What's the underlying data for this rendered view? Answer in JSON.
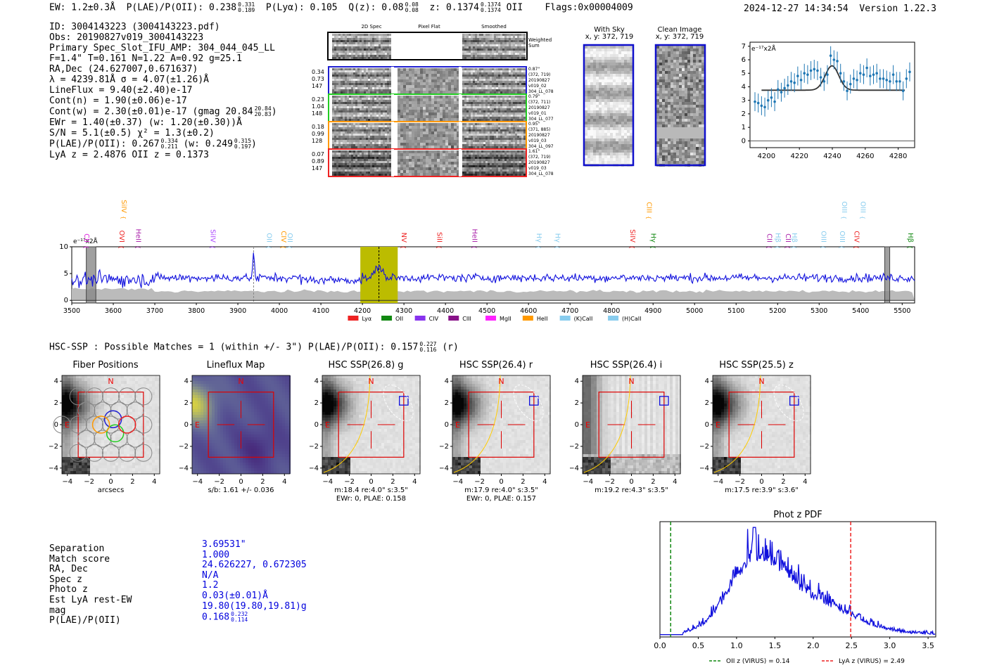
{
  "header": {
    "ew": "EW: 1.2±0.3Å",
    "plae_label": "P(LAE)/P(OII): 0.238",
    "plae_hi": "0.331",
    "plae_lo": "0.189",
    "plya": "P(Lyα): 0.105",
    "qz": "Q(z): 0.08",
    "qz_hi": "0.08",
    "qz_lo": "0.08",
    "z": "z: 0.1374",
    "z_hi": "0.1374",
    "z_lo": "0.1374",
    "z_line": "OII",
    "flags": "Flags:0x00004009",
    "timestamp": "2024-12-27 14:34:54",
    "version": "Version 1.22.3"
  },
  "info": {
    "id": "ID: 3004143223 (3004143223.pdf)",
    "obs": "Obs: 20190827v019_3004143223",
    "primary": "Primary Spec_Slot_IFU_AMP: 304_044_045_LL",
    "params": "F=1.4\"  T=0.161  N=1.22  A=0.92  g=25.1",
    "radec": "RA,Dec (24.627007,0.671637)",
    "lambda": "λ = 4239.81Å  σ = 4.07(±1.26)Å",
    "lineflux": "LineFlux = 9.40(±2.40)e-17",
    "cont_n": "Cont(n) = 1.90(±0.06)e-17",
    "cont_w": "Cont(w) = 2.30(±0.01)e-17 (gmag 20.84",
    "cont_w_hi": "20.84",
    "cont_w_lo": "20.83",
    "ewr": "EWr = 1.40(±0.37) (w: 1.20(±0.30))Å",
    "sn": "S/N = 5.1(±0.5)  χ² = 1.3(±0.2)",
    "plae": "P(LAE)/P(OII): 0.267",
    "plae_hi": "0.334",
    "plae_lo": "0.211",
    "plae_w": "(w: 0.249",
    "plae_w_hi": "0.315",
    "plae_w_lo": "0.197",
    "lya_z": "LyA z = 2.4876   OII z = 0.1373"
  },
  "cutouts": {
    "col_2d": "2D Spec",
    "col_flat": "Pixel Flat",
    "col_smooth": "Smoothed",
    "weighted": "Weighted",
    "sum": "Sum",
    "rows": [
      {
        "w1": "0.34",
        "w2": "0.73",
        "w3": "147",
        "r1": "0.87\"",
        "r2": "(372, 719)",
        "r3": "20190827",
        "r4": "v019_02",
        "r5": "304_LL_078"
      },
      {
        "w1": "0.23",
        "w2": "1.04",
        "w3": "148",
        "r1": "0.79\"",
        "r2": "(372, 711)",
        "r3": "20190827",
        "r4": "v019_01",
        "r5": "304_LL_077"
      },
      {
        "w1": "0.18",
        "w2": "0.99",
        "w3": "128",
        "r1": "0.95\"",
        "r2": "(371, 885)",
        "r3": "20190827",
        "r4": "v019_03",
        "r5": "304_LL_097"
      },
      {
        "w1": "0.07",
        "w2": "0.89",
        "w3": "147",
        "r1": "1.61\"",
        "r2": "(372, 719)",
        "r3": "20190827",
        "r4": "v019_03",
        "r5": "304_LL_078"
      }
    ],
    "row_colors": [
      "#1f1fd1",
      "#22cc22",
      "#ff9900",
      "#ee2222"
    ],
    "with_sky": "With Sky",
    "with_sky_xy": "x, y: 372, 719",
    "clean": "Clean Image",
    "clean_xy": "x, y: 372, 719"
  },
  "chart_data": [
    {
      "name": "line-fit",
      "type": "scatter",
      "ylabel": "e⁻¹⁷x2Å",
      "xlim": [
        4190,
        4290
      ],
      "ylim": [
        -0.5,
        7.3
      ],
      "xticks": [
        4200,
        4220,
        4240,
        4260,
        4280
      ],
      "yticks": [
        0,
        1,
        2,
        3,
        4,
        5,
        6,
        7
      ],
      "x": [
        4193,
        4195,
        4197,
        4199,
        4201,
        4203,
        4205,
        4207,
        4209,
        4211,
        4213,
        4215,
        4217,
        4219,
        4221,
        4223,
        4225,
        4227,
        4229,
        4231,
        4233,
        4235,
        4237,
        4239,
        4241,
        4243,
        4245,
        4247,
        4249,
        4251,
        4253,
        4255,
        4257,
        4259,
        4261,
        4263,
        4265,
        4267,
        4269,
        4271,
        4273,
        4275,
        4277,
        4279,
        4281,
        4283,
        4285,
        4287
      ],
      "y": [
        2.9,
        2.8,
        2.6,
        2.5,
        3.0,
        3.2,
        2.9,
        3.8,
        3.6,
        3.9,
        4.1,
        4.4,
        4.3,
        4.8,
        4.5,
        5.0,
        4.9,
        5.2,
        5.3,
        5.2,
        4.7,
        4.4,
        4.9,
        6.3,
        6.0,
        5.9,
        5.0,
        4.4,
        3.7,
        4.2,
        4.6,
        4.5,
        5.0,
        4.9,
        5.4,
        4.8,
        4.9,
        5.0,
        4.6,
        4.6,
        4.5,
        4.4,
        4.9,
        4.4,
        4.4,
        3.7,
        4.6,
        5.1
      ],
      "fit_continuum": 3.75,
      "fit_peak": 5.55,
      "fit_center": 4239.8,
      "fit_sigma": 4.1
    },
    {
      "name": "full-spectrum",
      "type": "line",
      "ylabel": "e⁻¹⁷x2Å",
      "xlim": [
        3500,
        5530
      ],
      "ylim": [
        -0.5,
        10
      ],
      "xticks": [
        3500,
        3600,
        3700,
        3800,
        3900,
        4000,
        4100,
        4200,
        4300,
        4400,
        4500,
        4600,
        4700,
        4800,
        4900,
        5000,
        5100,
        5200,
        5300,
        5400,
        5500
      ],
      "yticks": [
        0,
        5,
        10
      ],
      "highlight_band": [
        4195,
        4285
      ],
      "line_center": 4239.8,
      "secondary_line": 3938,
      "masked_bands": [
        [
          3535,
          3558
        ],
        [
          5458,
          5470
        ]
      ],
      "series_color": "#1010dd",
      "noise_level": 1.7,
      "continuum_level": 4.2,
      "lines": [
        {
          "label": "CII",
          "x": 3525,
          "color": "#dd22dd",
          "row": 2
        },
        {
          "label": "SiIV",
          "x": 3615,
          "color": "#ff9900",
          "row": 0
        },
        {
          "label": "OVI",
          "x": 3610,
          "color": "#ee2222",
          "row": 2
        },
        {
          "label": "HeII",
          "x": 3650,
          "color": "#aa22aa",
          "row": 2
        },
        {
          "label": "SiIV",
          "x": 3830,
          "color": "#aa44ff",
          "row": 2
        },
        {
          "label": "OII",
          "x": 3965,
          "color": "#88ccee",
          "row": 2
        },
        {
          "label": "CIV",
          "x": 4000,
          "color": "#ff9900",
          "row": 2
        },
        {
          "label": "OII",
          "x": 4015,
          "color": "#88ccee",
          "row": 2
        },
        {
          "label": "NV",
          "x": 4290,
          "color": "#ee2222",
          "row": 2
        },
        {
          "label": "SiII",
          "x": 4375,
          "color": "#ee2222",
          "row": 2
        },
        {
          "label": "HeII",
          "x": 4460,
          "color": "#aa22aa",
          "row": 2
        },
        {
          "label": "Hγ",
          "x": 4615,
          "color": "#88ccee",
          "row": 2
        },
        {
          "label": "Hγ",
          "x": 4660,
          "color": "#88ccee",
          "row": 2
        },
        {
          "label": "SiIV",
          "x": 4840,
          "color": "#ee2222",
          "row": 2
        },
        {
          "label": "CIII",
          "x": 4880,
          "color": "#ff9900",
          "row": 1
        },
        {
          "label": "Hγ",
          "x": 4890,
          "color": "#118811",
          "row": 2
        },
        {
          "label": "CII",
          "x": 5170,
          "color": "#aa22aa",
          "row": 2
        },
        {
          "label": "Hβ",
          "x": 5190,
          "color": "#88ccee",
          "row": 2
        },
        {
          "label": "CII",
          "x": 5215,
          "color": "#aa22aa",
          "row": 2
        },
        {
          "label": "Hβ",
          "x": 5230,
          "color": "#88ccee",
          "row": 2
        },
        {
          "label": "OIII",
          "x": 5300,
          "color": "#88ccee",
          "row": 2
        },
        {
          "label": "OIII",
          "x": 5350,
          "color": "#88ccee",
          "row": 1
        },
        {
          "label": "OIII",
          "x": 5345,
          "color": "#88ccee",
          "row": 2
        },
        {
          "label": "CIV",
          "x": 5380,
          "color": "#ee2222",
          "row": 2
        },
        {
          "label": "OIII",
          "x": 5395,
          "color": "#88ccee",
          "row": 1
        },
        {
          "label": "Hβ",
          "x": 5510,
          "color": "#118811",
          "row": 2
        }
      ],
      "legend": [
        {
          "label": "Lyα",
          "color": "#ee2222"
        },
        {
          "label": "OII",
          "color": "#118811"
        },
        {
          "label": "CIV",
          "color": "#8833ee"
        },
        {
          "label": "CIII",
          "color": "#881188"
        },
        {
          "label": "MgII",
          "color": "#ff22ff"
        },
        {
          "label": "HeII",
          "color": "#ff9900"
        },
        {
          "label": "(K)CaII",
          "color": "#88ccee"
        },
        {
          "label": "(H)CaII",
          "color": "#88ccee"
        }
      ]
    },
    {
      "name": "photz-pdf",
      "type": "line",
      "title": "Phot z PDF",
      "xlim": [
        0,
        3.6
      ],
      "xticks": [
        0.0,
        0.5,
        1.0,
        1.5,
        2.0,
        2.5,
        3.0,
        3.5
      ],
      "oii_z": 0.14,
      "lya_z": 2.49,
      "legend": [
        {
          "label": "OII z (VIRUS) = 0.14",
          "color": "#118811"
        },
        {
          "label": "LyA z (VIRUS) = 2.49",
          "color": "#ee2222"
        }
      ]
    }
  ],
  "hsc": {
    "summary": "HSC-SSP : Possible Matches = 1 (within +/- 3\")  P(LAE)/P(OII): 0.157",
    "summary_hi": "0.227",
    "summary_lo": "0.116",
    "summary_band": "(r)",
    "panels": [
      {
        "title": "Fiber Positions",
        "sub1": "arcsecs",
        "sub2": ""
      },
      {
        "title": "Lineflux Map",
        "sub1": "s/b: 1.61 +/- 0.036",
        "sub2": ""
      },
      {
        "title": "HSC SSP(26.8) g",
        "sub1": "m:18.4  re:4.0\"  s:3.5\"",
        "sub2": "EWr: 0, PLAE: 0.158"
      },
      {
        "title": "HSC SSP(26.4) r",
        "sub1": "m:17.9  re:4.0\"  s:3.5\"",
        "sub2": "EWr: 0, PLAE: 0.157"
      },
      {
        "title": "HSC SSP(26.4) i",
        "sub1": "m:19.2  re:4.3\"  s:3.5\"",
        "sub2": ""
      },
      {
        "title": "HSC SSP(25.5) z",
        "sub1": "m:17.5  re:3.9\"  s:3.6\"",
        "sub2": ""
      }
    ],
    "ticks": [
      "-4",
      "-2",
      "0",
      "2",
      "4"
    ],
    "n_label": "N",
    "e_label": "E"
  },
  "match": {
    "labels": [
      "Separation",
      "Match score",
      "RA, Dec",
      "Spec z",
      "Photo z",
      "Est LyA rest-EW",
      "mag",
      "P(LAE)/P(OII)"
    ],
    "values": [
      "3.69531\"",
      "1.000",
      "24.626227, 0.672305",
      "N/A",
      "1.2",
      "0.03(±0.01)Å",
      "19.80(19.80,19.81)g",
      "0.168"
    ],
    "plae_hi": "0.232",
    "plae_lo": "0.114"
  }
}
